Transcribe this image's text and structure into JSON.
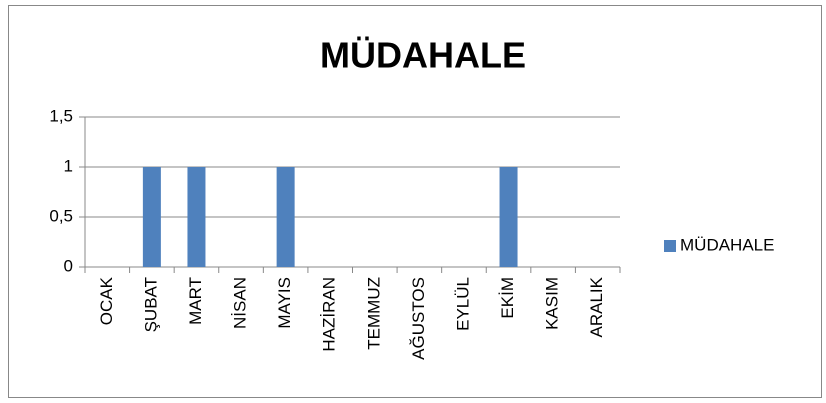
{
  "chart_data": {
    "type": "bar",
    "title": "MÜDAHALE",
    "categories": [
      "OCAK",
      "ŞUBAT",
      "MART",
      "NİSAN",
      "MAYIS",
      "HAZİRAN",
      "TEMMUZ",
      "AĞUSTOS",
      "EYLÜL",
      "EKİM",
      "KASIM",
      "ARALIK"
    ],
    "series": [
      {
        "name": "MÜDAHALE",
        "color": "#4f81bd",
        "values": [
          0,
          1,
          1,
          0,
          1,
          0,
          0,
          0,
          0,
          1,
          0,
          0
        ]
      }
    ],
    "ylim": [
      0,
      1.5
    ],
    "yticks": [
      0,
      {
        "value": 0.5,
        "label": "0,5"
      },
      1,
      {
        "value": 1.5,
        "label": "1,5"
      }
    ],
    "grid": true,
    "legend": "right"
  }
}
